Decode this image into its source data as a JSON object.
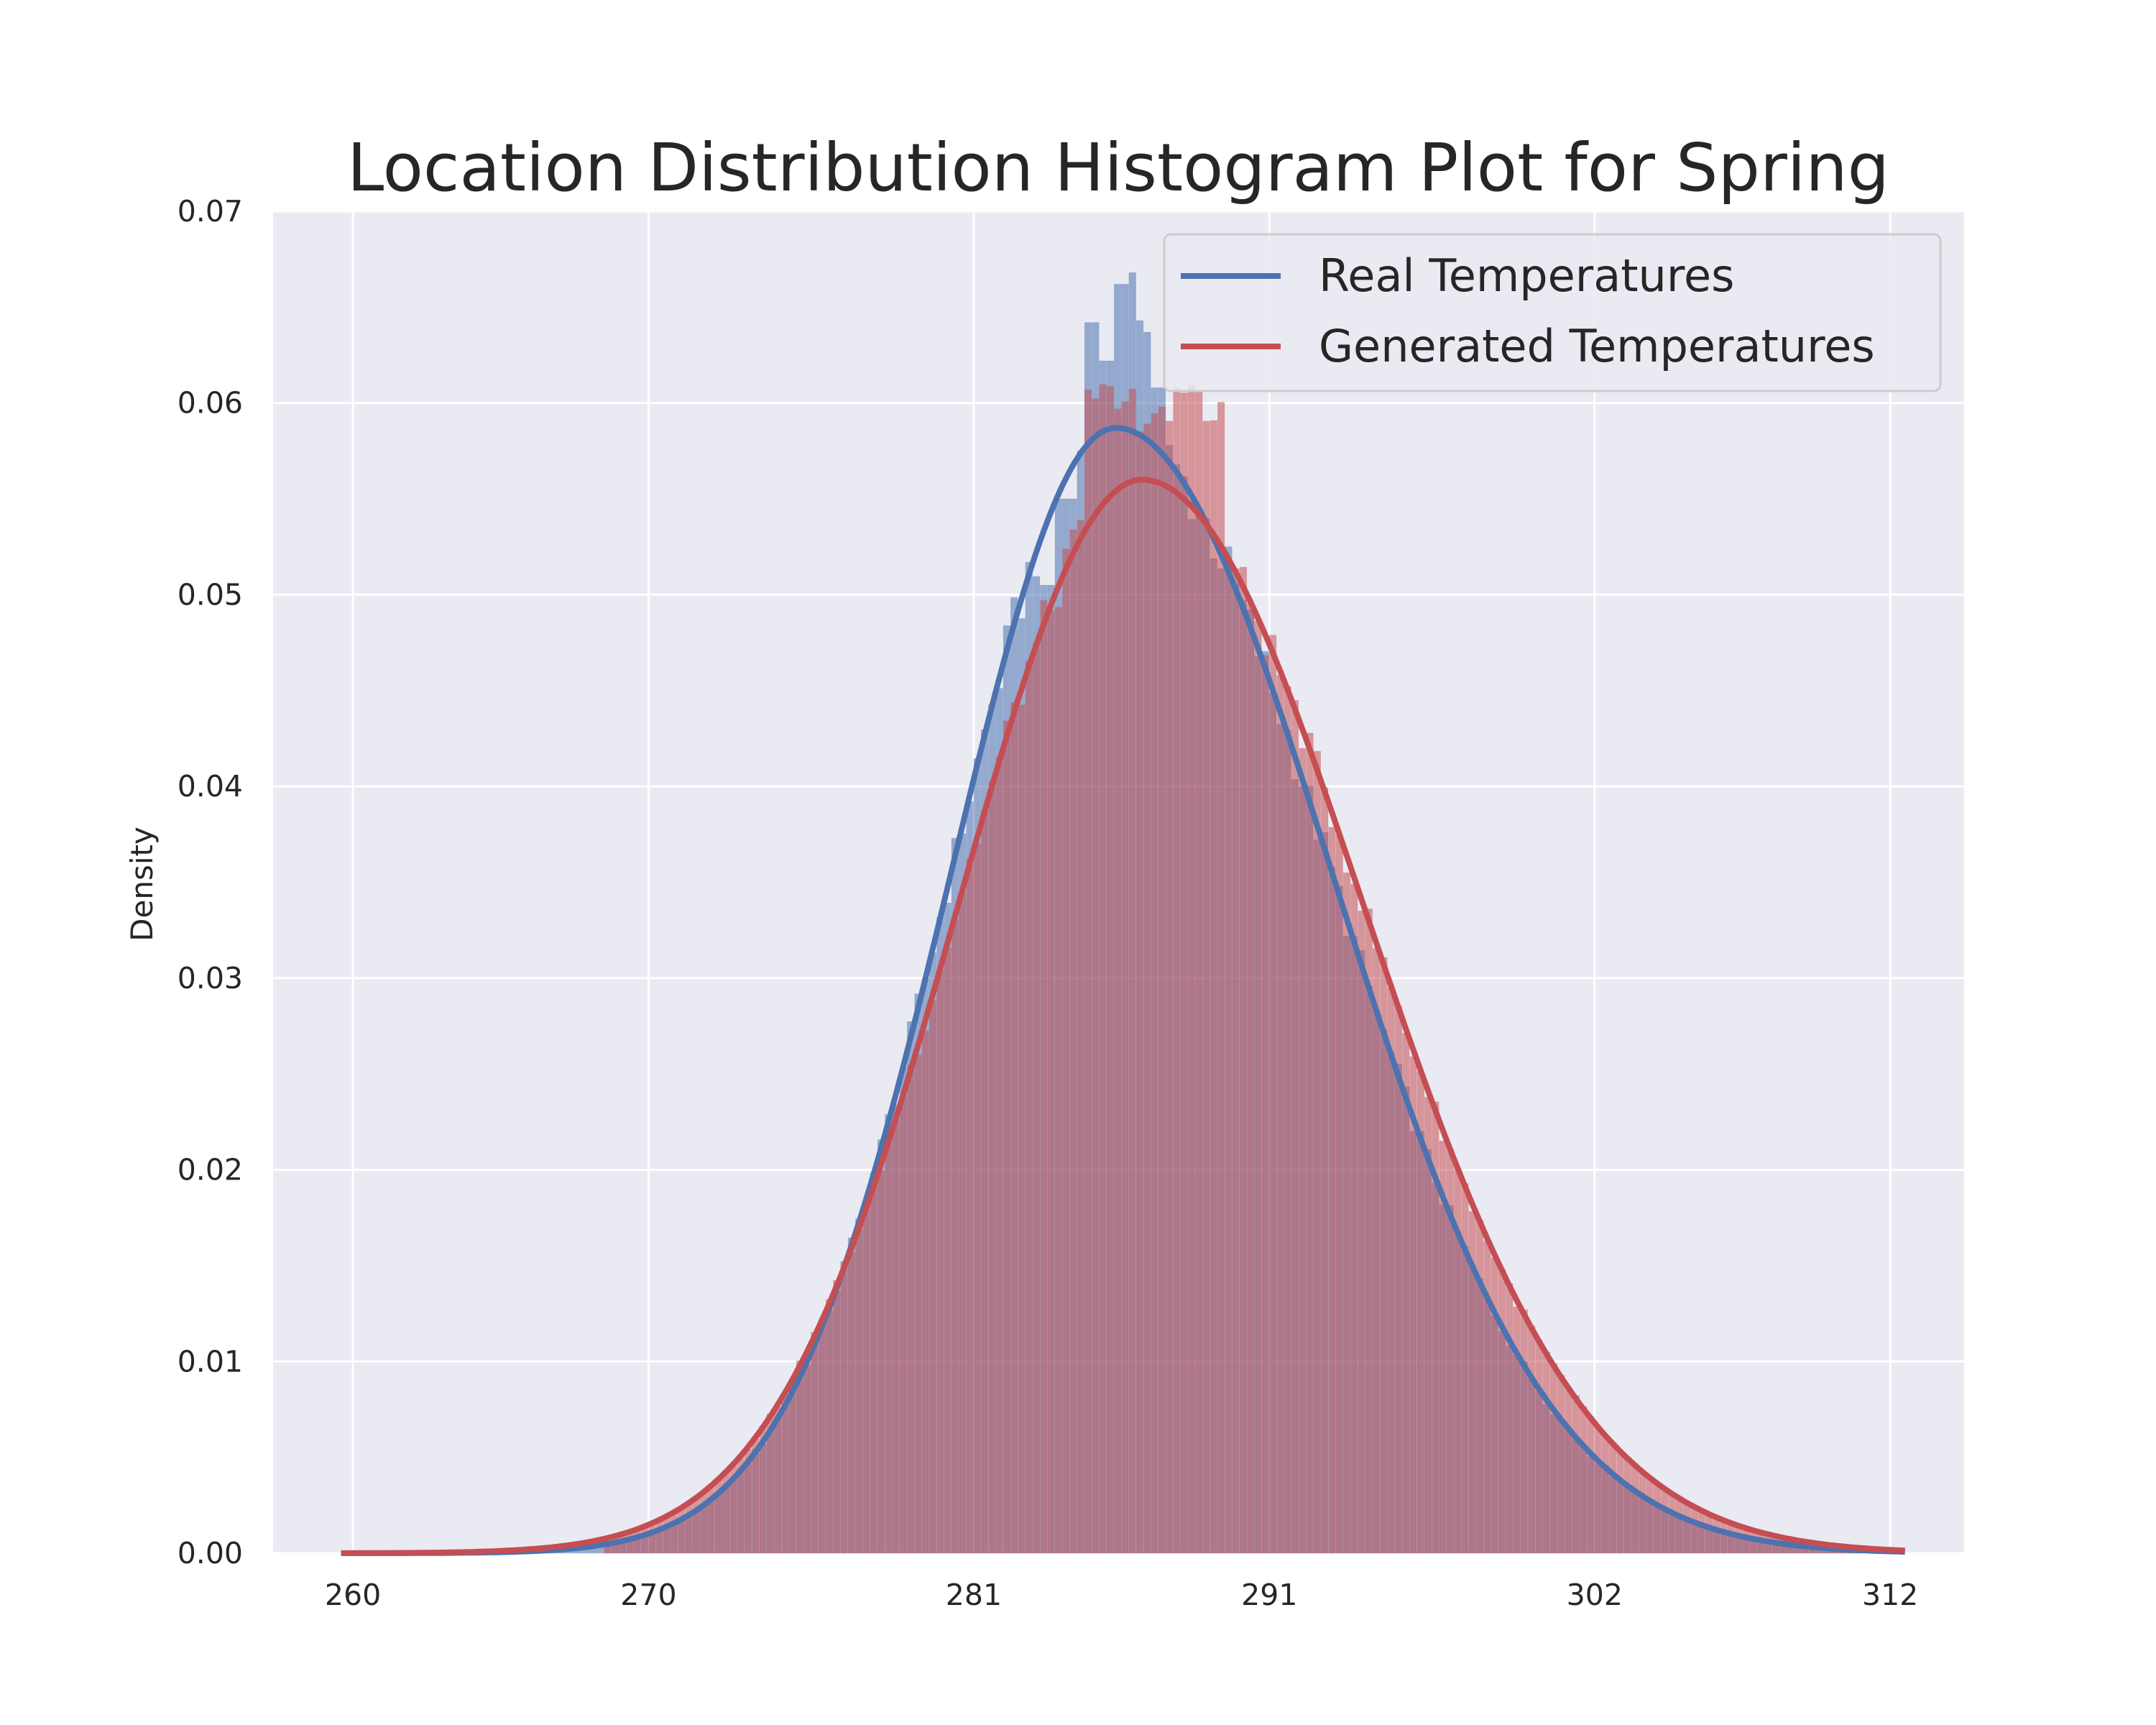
{
  "chart_data": {
    "type": "histogram",
    "title": "Location Distribution Histogram Plot for Spring",
    "xlabel": "",
    "ylabel": "Density",
    "xlim": [
      257.3,
      314.5
    ],
    "ylim": [
      0,
      0.07
    ],
    "x_ticks": [
      260,
      270,
      281,
      291,
      302,
      312
    ],
    "y_ticks": [
      "0.00",
      "0.01",
      "0.02",
      "0.03",
      "0.04",
      "0.05",
      "0.06",
      "0.07"
    ],
    "grid": true,
    "legend_position": "top-right",
    "bin_width": 0.25,
    "series": [
      {
        "name": "Real Temperatures",
        "color": "#4c72b0",
        "curve": {
          "mean": 285.8,
          "sigma_left": 5.55,
          "sigma_right": 7.3,
          "peak": 0.0587
        },
        "histogram_peak_bins": [
          {
            "x": 283.4,
            "y": 0.0505
          },
          {
            "x": 284.0,
            "y": 0.055
          },
          {
            "x": 284.5,
            "y": 0.0575
          },
          {
            "x": 284.9,
            "y": 0.0642
          },
          {
            "x": 285.4,
            "y": 0.0622
          },
          {
            "x": 285.9,
            "y": 0.0662
          },
          {
            "x": 286.2,
            "y": 0.0668
          },
          {
            "x": 286.5,
            "y": 0.0643
          },
          {
            "x": 286.8,
            "y": 0.0637
          },
          {
            "x": 287.1,
            "y": 0.0608
          }
        ]
      },
      {
        "name": "Generated Temperatures",
        "color": "#c44e52",
        "curve": {
          "mean": 286.7,
          "sigma_left": 6.2,
          "sigma_right": 7.45,
          "peak": 0.056
        }
      }
    ]
  }
}
